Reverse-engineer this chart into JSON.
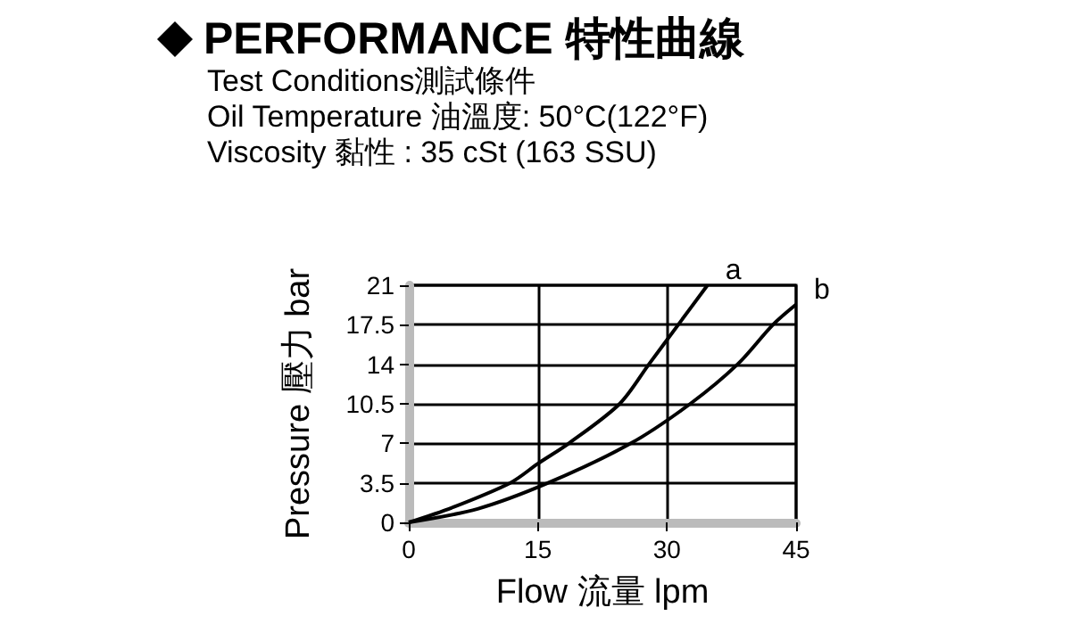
{
  "chart_data": {
    "type": "line",
    "title": "PERFORMANCE 特性曲線",
    "annotations": [
      "Test Conditions測試條件",
      "Oil Temperature 油溫度: 50°C(122°F)",
      "Viscosity 黏性 : 35 cSt (163 SSU)"
    ],
    "xlabel": "Flow 流量 lpm",
    "ylabel": "Pressure 壓力 bar",
    "series": [
      {
        "name": "a",
        "color": "#000000",
        "x": [
          0,
          5,
          11.8,
          15,
          18.6,
          24.5,
          27.9,
          31.3,
          34.7
        ],
        "values": [
          0,
          1.3,
          3.5,
          5.2,
          7,
          10.5,
          14,
          17.5,
          21
        ]
      },
      {
        "name": "b",
        "color": "#000000",
        "x": [
          0,
          8,
          16.2,
          25.8,
          32.7,
          38.2,
          42.3,
          45
        ],
        "values": [
          0,
          1.2,
          3.5,
          7,
          10.5,
          14,
          17.5,
          19.3
        ]
      }
    ],
    "xlim": [
      0,
      45
    ],
    "xticks": [
      0,
      15,
      30,
      45
    ],
    "ylim": [
      0,
      21
    ],
    "yticks": [
      0,
      3.5,
      7,
      10.5,
      14,
      17.5,
      21
    ],
    "grid": true,
    "legend": false,
    "marker": "none",
    "line_style": "solid"
  }
}
